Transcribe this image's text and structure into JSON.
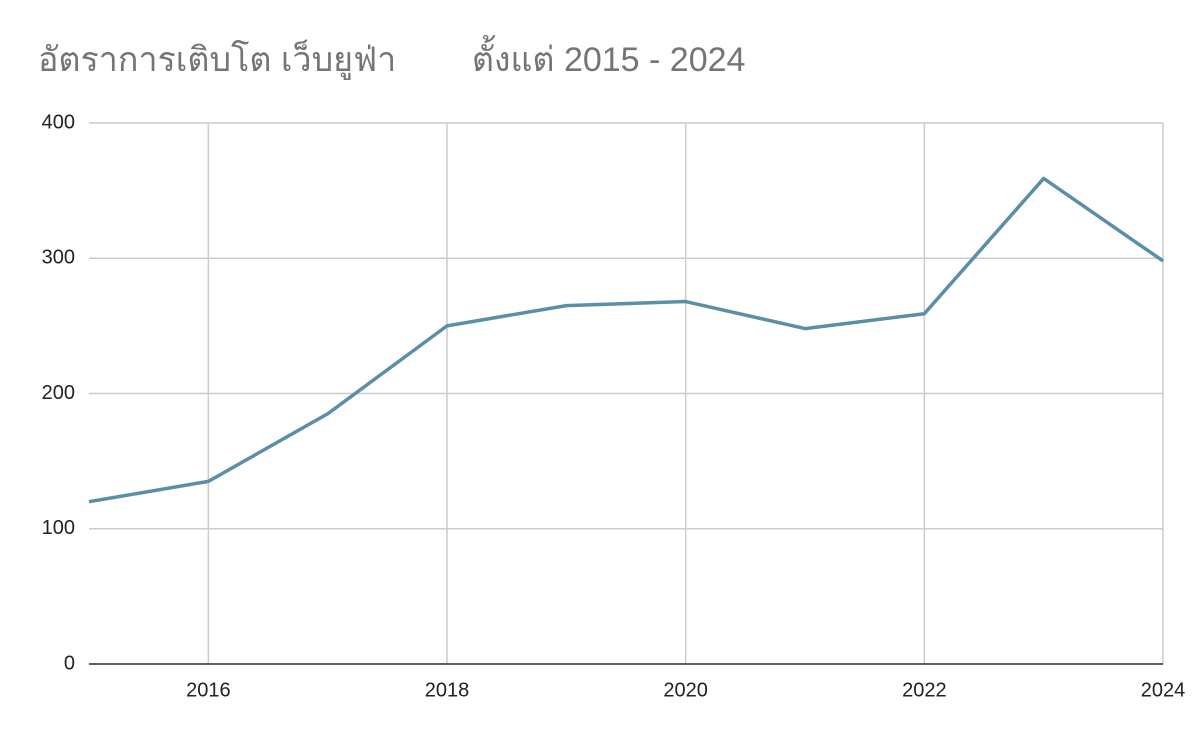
{
  "chart_data": {
    "type": "line",
    "title": "อัตราการเติบโต เว็บยูฟ่า        ตั้งแต่ 2015 - 2024",
    "x": [
      2015,
      2016,
      2017,
      2018,
      2019,
      2020,
      2021,
      2022,
      2023,
      2024
    ],
    "series": [
      {
        "name": "อัตราการเติบโต",
        "color": "#5b8fa8",
        "values": [
          120,
          135,
          185,
          250,
          265,
          268,
          248,
          259,
          359,
          298
        ]
      }
    ],
    "xlim": [
      2015,
      2024
    ],
    "xticks": [
      2016,
      2018,
      2020,
      2022,
      2024
    ],
    "ylim": [
      0,
      400
    ],
    "yticks": [
      0,
      100,
      200,
      300,
      400
    ],
    "grid": true
  }
}
